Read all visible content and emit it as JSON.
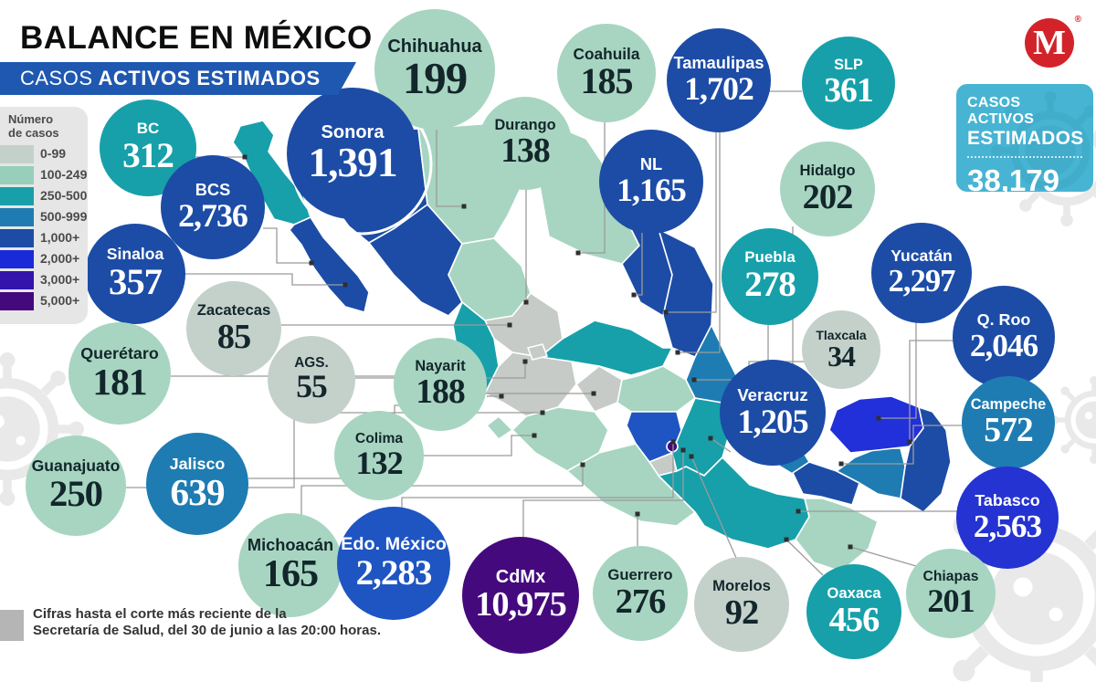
{
  "header": {
    "title_regular": "BALANCE EN ",
    "title_bold": "MÉXICO",
    "subtitle_regular": "CASOS",
    "subtitle_bold": "ACTIVOS ESTIMADOS",
    "banner_color": "#1f58b0"
  },
  "logo": {
    "letter": "M",
    "registered": "®",
    "color": "#d2232a"
  },
  "summary_badge": {
    "line1": "CASOS ACTIVOS",
    "line2": "ESTIMADOS",
    "total": "38,179",
    "bg_color": "#47b4d3"
  },
  "legend": {
    "title_line1": "Número",
    "title_line2": "de casos",
    "items": [
      {
        "label": "0-99",
        "color": "#c3d1ca"
      },
      {
        "label": "100-249",
        "color": "#97cfba"
      },
      {
        "label": "250-500",
        "color": "#17a0aa"
      },
      {
        "label": "500-999",
        "color": "#1e7cb2"
      },
      {
        "label": "1,000+",
        "color": "#1c4ca6"
      },
      {
        "label": "2,000+",
        "color": "#1b2ad8"
      },
      {
        "label": "3,000+",
        "color": "#3413ad"
      },
      {
        "label": "5,000+",
        "color": "#45097e"
      }
    ]
  },
  "footnote": {
    "line1": "Cifras hasta el corte más reciente de la",
    "line2": "Secretaría de Salud, del 30 de junio a las 20:00 horas."
  },
  "chart_data": {
    "type": "map",
    "title": "Balance en México — Casos activos estimados",
    "region": "Mexico, by state",
    "total_label": "Casos activos estimados",
    "total": 38179,
    "source_note": "Secretaría de Salud, corte del 30 de junio a las 20:00 horas",
    "legend_bins": [
      "0-99",
      "100-249",
      "250-500",
      "500-999",
      "1,000+",
      "2,000+",
      "3,000+",
      "5,000+"
    ],
    "states": [
      {
        "name": "BC",
        "value": 312,
        "display": "312",
        "color": "#17a0aa",
        "text": "#ffffff"
      },
      {
        "name": "Chihuahua",
        "value": 199,
        "display": "199",
        "color": "#a7d5c1",
        "text": "#13262b"
      },
      {
        "name": "Sonora",
        "value": 1391,
        "display": "1,391",
        "color": "#1c4ca6",
        "text": "#ffffff"
      },
      {
        "name": "Durango",
        "value": 138,
        "display": "138",
        "color": "#a7d5c1",
        "text": "#13262b"
      },
      {
        "name": "Coahuila",
        "value": 185,
        "display": "185",
        "color": "#a7d5c1",
        "text": "#13262b"
      },
      {
        "name": "Tamaulipas",
        "value": 1702,
        "display": "1,702",
        "color": "#1c4ca6",
        "text": "#ffffff"
      },
      {
        "name": "SLP",
        "value": 361,
        "display": "361",
        "color": "#17a0aa",
        "text": "#ffffff"
      },
      {
        "name": "NL",
        "value": 1165,
        "display": "1,165",
        "color": "#1c4ca6",
        "text": "#ffffff"
      },
      {
        "name": "Hidalgo",
        "value": 202,
        "display": "202",
        "color": "#a7d5c1",
        "text": "#13262b"
      },
      {
        "name": "BCS",
        "value": 2736,
        "display": "2,736",
        "color": "#1c4ca6",
        "text": "#ffffff"
      },
      {
        "name": "Sinaloa",
        "value": 357,
        "display": "357",
        "color": "#1c4ca6",
        "text": "#ffffff"
      },
      {
        "name": "Zacatecas",
        "value": 85,
        "display": "85",
        "color": "#c3d1ca",
        "text": "#13262b"
      },
      {
        "name": "Querétaro",
        "value": 181,
        "display": "181",
        "color": "#a7d5c1",
        "text": "#13262b"
      },
      {
        "name": "AGS.",
        "value": 55,
        "display": "55",
        "color": "#c3d1ca",
        "text": "#13262b"
      },
      {
        "name": "Nayarit",
        "value": 188,
        "display": "188",
        "color": "#a7d5c1",
        "text": "#13262b"
      },
      {
        "name": "Puebla",
        "value": 278,
        "display": "278",
        "color": "#17a0aa",
        "text": "#ffffff"
      },
      {
        "name": "Tlaxcala",
        "value": 34,
        "display": "34",
        "color": "#c3d1ca",
        "text": "#13262b"
      },
      {
        "name": "Yucatán",
        "value": 2297,
        "display": "2,297",
        "color": "#1c4ca6",
        "text": "#ffffff"
      },
      {
        "name": "Q. Roo",
        "value": 2046,
        "display": "2,046",
        "color": "#1c4ca6",
        "text": "#ffffff"
      },
      {
        "name": "Veracruz",
        "value": 1205,
        "display": "1,205",
        "color": "#1c4ca6",
        "text": "#ffffff"
      },
      {
        "name": "Campeche",
        "value": 572,
        "display": "572",
        "color": "#1e7cb2",
        "text": "#ffffff"
      },
      {
        "name": "Guanajuato",
        "value": 250,
        "display": "250",
        "color": "#a7d5c1",
        "text": "#13262b"
      },
      {
        "name": "Jalisco",
        "value": 639,
        "display": "639",
        "color": "#1e7cb2",
        "text": "#ffffff"
      },
      {
        "name": "Colima",
        "value": 132,
        "display": "132",
        "color": "#a7d5c1",
        "text": "#13262b"
      },
      {
        "name": "Tabasco",
        "value": 2563,
        "display": "2,563",
        "color": "#2433d1",
        "text": "#ffffff"
      },
      {
        "name": "Michoacán",
        "value": 165,
        "display": "165",
        "color": "#a7d5c1",
        "text": "#13262b"
      },
      {
        "name": "Edo. México",
        "value": 2283,
        "display": "2,283",
        "color": "#1e55c2",
        "text": "#ffffff"
      },
      {
        "name": "CdMx",
        "value": 10975,
        "display": "10,975",
        "color": "#45097e",
        "text": "#ffffff"
      },
      {
        "name": "Guerrero",
        "value": 276,
        "display": "276",
        "color": "#a7d5c1",
        "text": "#13262b"
      },
      {
        "name": "Morelos",
        "value": 92,
        "display": "92",
        "color": "#c3d1ca",
        "text": "#13262b"
      },
      {
        "name": "Oaxaca",
        "value": 456,
        "display": "456",
        "color": "#17a0aa",
        "text": "#ffffff"
      },
      {
        "name": "Chiapas",
        "value": 201,
        "display": "201",
        "color": "#a7d5c1",
        "text": "#13262b"
      }
    ]
  }
}
